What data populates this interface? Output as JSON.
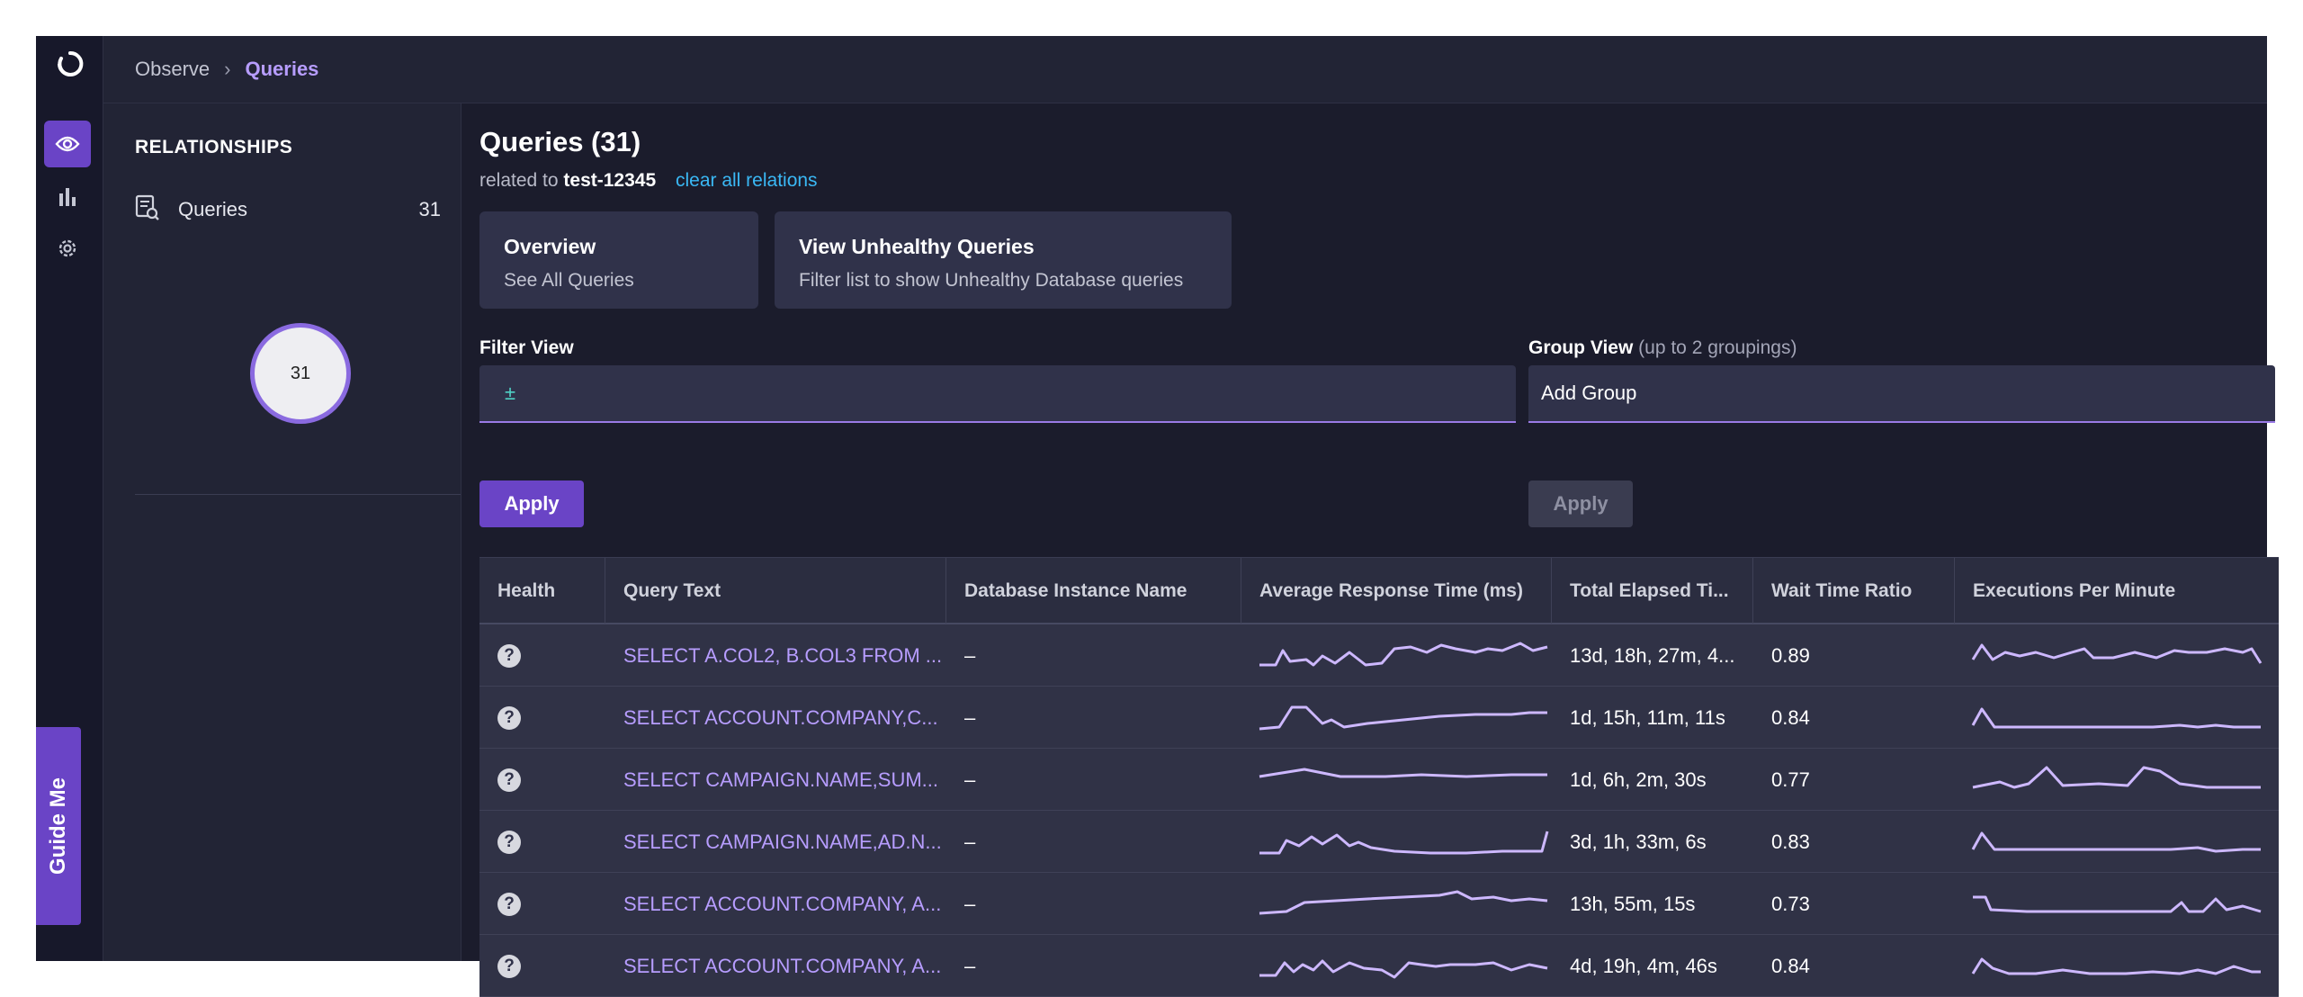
{
  "breadcrumb": {
    "parent": "Observe",
    "current": "Queries"
  },
  "guide_me": "Guide Me",
  "relationships": {
    "title": "RELATIONSHIPS",
    "items": [
      {
        "label": "Queries",
        "count": "31"
      }
    ],
    "circle_count": "31"
  },
  "main": {
    "title": "Queries (31)",
    "related_prefix": "related to",
    "related_entity": "test-12345",
    "clear_link": "clear all relations"
  },
  "cards": [
    {
      "title": "Overview",
      "subtitle": "See All Queries"
    },
    {
      "title": "View Unhealthy Queries",
      "subtitle": "Filter list to show Unhealthy Database queries"
    }
  ],
  "filter": {
    "label": "Filter View",
    "value": "±",
    "apply": "Apply"
  },
  "group": {
    "label": "Group View",
    "hint": "(up to 2 groupings)",
    "value": "Add Group",
    "apply": "Apply"
  },
  "table": {
    "columns": [
      "Health",
      "Query Text",
      "Database Instance Name",
      "Average Response Time (ms)",
      "Total Elapsed Ti...",
      "Wait Time Ratio",
      "Executions Per Minute"
    ],
    "rows": [
      {
        "health": "?",
        "query": "SELECT A.COL2, B.COL3 FROM ...",
        "db": "–",
        "elapsed": "13d, 18h, 27m, 4...",
        "wait": "0.89"
      },
      {
        "health": "?",
        "query": "SELECT ACCOUNT.COMPANY,C...",
        "db": "–",
        "elapsed": "1d, 15h, 11m, 11s",
        "wait": "0.84"
      },
      {
        "health": "?",
        "query": "SELECT CAMPAIGN.NAME,SUM...",
        "db": "–",
        "elapsed": "1d, 6h, 2m, 30s",
        "wait": "0.77"
      },
      {
        "health": "?",
        "query": "SELECT CAMPAIGN.NAME,AD.N...",
        "db": "–",
        "elapsed": "3d, 1h, 33m, 6s",
        "wait": "0.83"
      },
      {
        "health": "?",
        "query": "SELECT ACCOUNT.COMPANY, A...",
        "db": "–",
        "elapsed": "13h, 55m, 15s",
        "wait": "0.73"
      },
      {
        "health": "?",
        "query": "SELECT ACCOUNT.COMPANY, A...",
        "db": "–",
        "elapsed": "4d, 19h, 4m, 46s",
        "wait": "0.84"
      }
    ]
  },
  "colors": {
    "accent": "#6a44c6",
    "link": "#3ab8f5",
    "query_text": "#b79dff",
    "sparkline": "#cdb8ff"
  }
}
